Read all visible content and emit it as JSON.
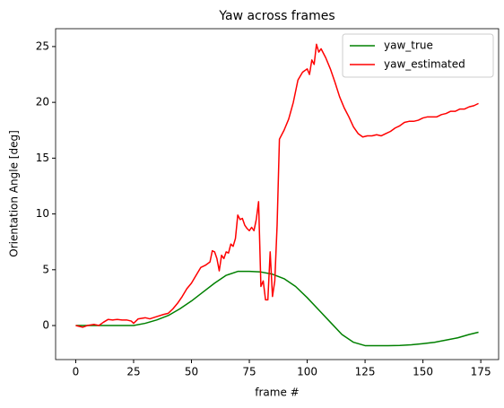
{
  "chart_data": {
    "type": "line",
    "title": "Yaw across frames",
    "xlabel": "frame #",
    "ylabel": "Orientation Angle [deg]",
    "xlim": [
      -8.7,
      182.7
    ],
    "ylim": [
      -3.05,
      26.6
    ],
    "xticks": [
      0,
      25,
      50,
      75,
      100,
      125,
      150,
      175
    ],
    "yticks": [
      0,
      5,
      10,
      15,
      20,
      25
    ],
    "grid": false,
    "legend": "upper right",
    "series": [
      {
        "name": "yaw_true",
        "color": "#008000",
        "x": [
          0,
          5,
          10,
          15,
          20,
          25,
          30,
          35,
          40,
          45,
          50,
          55,
          60,
          65,
          70,
          75,
          80,
          85,
          90,
          95,
          100,
          105,
          110,
          115,
          120,
          125,
          130,
          135,
          140,
          145,
          150,
          155,
          160,
          165,
          170,
          174
        ],
        "values": [
          0,
          0,
          0,
          0,
          0,
          0,
          0.2,
          0.5,
          0.9,
          1.5,
          2.2,
          3.0,
          3.8,
          4.5,
          4.85,
          4.85,
          4.8,
          4.6,
          4.2,
          3.5,
          2.5,
          1.4,
          0.3,
          -0.8,
          -1.5,
          -1.8,
          -1.8,
          -1.8,
          -1.78,
          -1.72,
          -1.62,
          -1.5,
          -1.3,
          -1.1,
          -0.8,
          -0.6
        ]
      },
      {
        "name": "yaw_estimated",
        "color": "#ff0000",
        "x": [
          0,
          3,
          5,
          8,
          10,
          12,
          14,
          16,
          18,
          20,
          22,
          24,
          25,
          27,
          30,
          32,
          35,
          38,
          40,
          42,
          44,
          46,
          48,
          50,
          52,
          54,
          56,
          58,
          59,
          60,
          61,
          62,
          63,
          64,
          65,
          66,
          67,
          68,
          69,
          70,
          71,
          72,
          73,
          74,
          75,
          76,
          77,
          78,
          79,
          80,
          81,
          82,
          83,
          84,
          85,
          86,
          87,
          88,
          90,
          92,
          94,
          96,
          98,
          100,
          101,
          102,
          103,
          104,
          105,
          106,
          108,
          110,
          112,
          114,
          116,
          118,
          120,
          122,
          124,
          126,
          128,
          130,
          132,
          134,
          136,
          138,
          140,
          142,
          144,
          146,
          148,
          150,
          152,
          154,
          156,
          158,
          160,
          162,
          164,
          166,
          168,
          170,
          172,
          174
        ],
        "values": [
          0,
          -0.15,
          0,
          0.1,
          0,
          0.3,
          0.55,
          0.5,
          0.55,
          0.5,
          0.5,
          0.4,
          0.2,
          0.6,
          0.7,
          0.6,
          0.8,
          1.0,
          1.1,
          1.5,
          2.0,
          2.6,
          3.3,
          3.8,
          4.5,
          5.2,
          5.4,
          5.7,
          6.7,
          6.6,
          6.0,
          4.9,
          6.3,
          6.0,
          6.6,
          6.5,
          7.3,
          7.1,
          7.8,
          9.9,
          9.5,
          9.6,
          9.0,
          8.7,
          8.5,
          8.8,
          8.5,
          9.5,
          11.1,
          3.5,
          4.0,
          2.3,
          2.3,
          6.6,
          2.6,
          4.0,
          9.0,
          16.7,
          17.5,
          18.5,
          20.0,
          22.0,
          22.7,
          23.0,
          22.5,
          23.8,
          23.4,
          25.2,
          24.5,
          24.8,
          24.0,
          23.0,
          21.8,
          20.5,
          19.5,
          18.7,
          17.8,
          17.2,
          16.9,
          17.0,
          17.0,
          17.1,
          17.0,
          17.2,
          17.4,
          17.7,
          17.9,
          18.2,
          18.3,
          18.3,
          18.4,
          18.6,
          18.7,
          18.7,
          18.7,
          18.9,
          19.0,
          19.2,
          19.2,
          19.4,
          19.4,
          19.6,
          19.7,
          19.9
        ]
      }
    ]
  }
}
